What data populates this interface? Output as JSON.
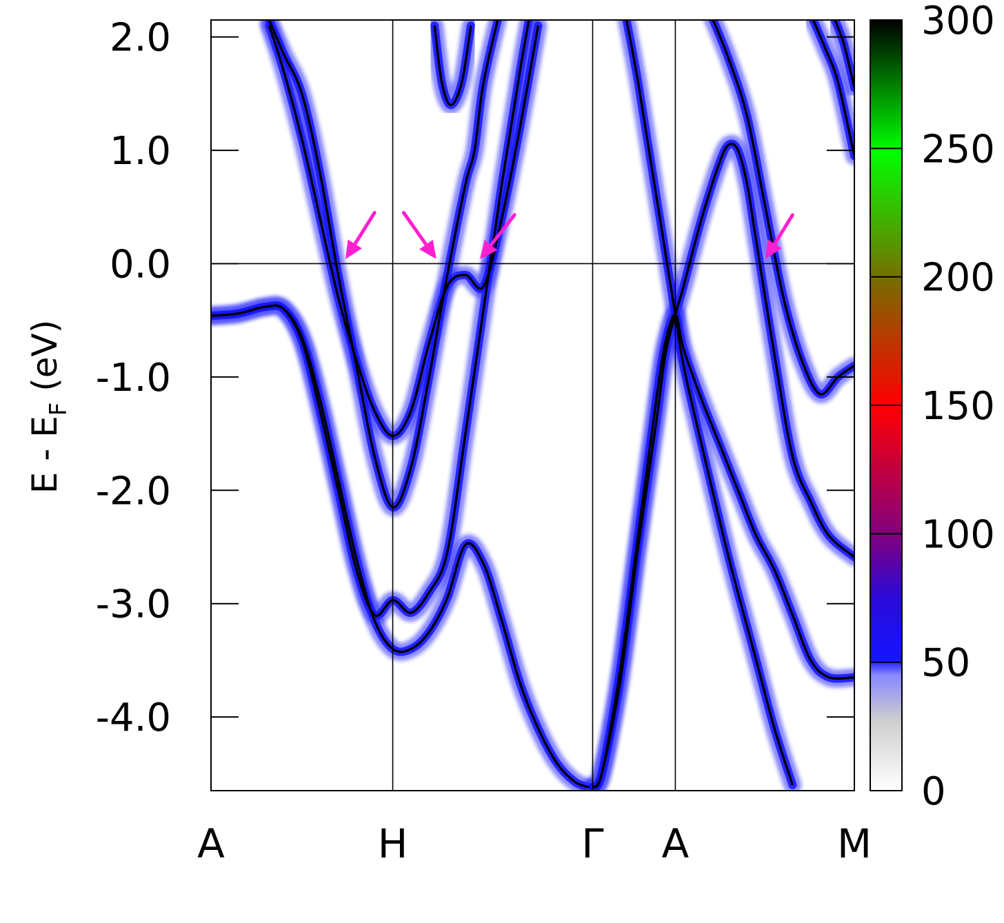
{
  "chart_data": {
    "type": "heatmap",
    "title": "",
    "xlabel": "",
    "ylabel": {
      "main": "E - E",
      "sub": "F",
      "unit": " (eV)"
    },
    "ylim": [
      -4.65,
      2.15
    ],
    "yticks": [
      2.0,
      1.0,
      0.0,
      -1.0,
      -2.0,
      -3.0,
      -4.0
    ],
    "ytick_labels": [
      "2.0",
      "1.0",
      "0.0",
      "-1.0",
      "-2.0",
      "-3.0",
      "-4.0"
    ],
    "kpath": [
      {
        "label": "A",
        "pos": 0.0
      },
      {
        "label": "H",
        "pos": 1.0
      },
      {
        "label": "Γ",
        "pos": 2.1
      },
      {
        "label": "A",
        "pos": 2.555
      },
      {
        "label": "M",
        "pos": 3.54
      }
    ],
    "fermi_level": 0.0,
    "colorbar": {
      "range": [
        0,
        300
      ],
      "ticks": [
        0,
        50,
        100,
        150,
        200,
        250,
        300
      ],
      "tick_labels": [
        "0",
        "50",
        "100",
        "150",
        "200",
        "250",
        "300"
      ],
      "colors": [
        "#ffffff",
        "#1414ff",
        "#800080",
        "#ff0000",
        "#7a6a00",
        "#00ff00",
        "#000000"
      ]
    },
    "series": [
      {
        "points": [
          [
            0.0,
            -0.46
          ],
          [
            0.15,
            -0.44
          ],
          [
            0.3,
            -0.38
          ],
          [
            0.4,
            -0.4
          ],
          [
            0.5,
            -0.65
          ],
          [
            0.6,
            -1.2
          ],
          [
            0.7,
            -1.9
          ],
          [
            0.8,
            -2.6
          ],
          [
            0.9,
            -3.15
          ],
          [
            1.0,
            -3.4
          ],
          [
            1.1,
            -3.4
          ],
          [
            1.2,
            -3.25
          ],
          [
            1.3,
            -2.95
          ],
          [
            1.4,
            -2.48
          ],
          [
            1.5,
            -2.65
          ],
          [
            1.6,
            -3.15
          ],
          [
            1.7,
            -3.7
          ],
          [
            1.8,
            -4.1
          ],
          [
            1.9,
            -4.4
          ],
          [
            2.0,
            -4.57
          ],
          [
            2.08,
            -4.62
          ]
        ]
      },
      {
        "points": [
          [
            0.0,
            -0.46
          ],
          [
            0.15,
            -0.44
          ],
          [
            0.3,
            -0.38
          ],
          [
            0.4,
            -0.4
          ],
          [
            0.5,
            -0.68
          ],
          [
            0.6,
            -1.3
          ],
          [
            0.7,
            -2.0
          ],
          [
            0.8,
            -2.7
          ],
          [
            0.9,
            -3.1
          ],
          [
            1.0,
            -2.97
          ],
          [
            1.1,
            -3.08
          ],
          [
            1.2,
            -2.9
          ],
          [
            1.3,
            -2.55
          ],
          [
            1.4,
            -1.5
          ],
          [
            1.5,
            -0.4
          ],
          [
            1.6,
            0.7
          ],
          [
            1.7,
            1.7
          ],
          [
            1.8,
            2.6
          ]
        ]
      },
      {
        "points": [
          [
            0.32,
            2.1
          ],
          [
            0.4,
            1.7
          ],
          [
            0.5,
            1.1
          ],
          [
            0.6,
            0.4
          ],
          [
            0.7,
            -0.3
          ],
          [
            0.8,
            -0.85
          ],
          [
            0.9,
            -1.3
          ],
          [
            1.0,
            -1.52
          ],
          [
            1.1,
            -1.3
          ],
          [
            1.2,
            -0.7
          ],
          [
            1.3,
            -0.2
          ],
          [
            1.4,
            -0.1
          ],
          [
            1.5,
            -0.2
          ],
          [
            1.6,
            0.4
          ],
          [
            1.7,
            1.2
          ],
          [
            1.8,
            2.1
          ]
        ]
      },
      {
        "points": [
          [
            0.32,
            2.15
          ],
          [
            0.4,
            1.85
          ],
          [
            0.5,
            1.5
          ],
          [
            0.6,
            0.8
          ],
          [
            0.7,
            -0.1
          ],
          [
            0.8,
            -0.9
          ],
          [
            0.9,
            -1.7
          ],
          [
            1.0,
            -2.15
          ],
          [
            1.1,
            -1.8
          ],
          [
            1.2,
            -1.0
          ],
          [
            1.3,
            -0.1
          ],
          [
            1.4,
            0.7
          ],
          [
            1.45,
            1.0
          ],
          [
            1.5,
            1.6
          ],
          [
            1.6,
            2.3
          ]
        ]
      },
      {
        "points": [
          [
            1.23,
            2.1
          ],
          [
            1.27,
            1.6
          ],
          [
            1.32,
            1.4
          ],
          [
            1.38,
            1.6
          ],
          [
            1.43,
            2.1
          ]
        ]
      },
      {
        "points": [
          [
            2.1,
            -4.62
          ],
          [
            2.15,
            -4.5
          ],
          [
            2.25,
            -3.7
          ],
          [
            2.35,
            -2.5
          ],
          [
            2.45,
            -1.4
          ],
          [
            2.5,
            -0.8
          ],
          [
            2.555,
            -0.45
          ],
          [
            2.6,
            -0.2
          ],
          [
            2.7,
            0.4
          ],
          [
            2.8,
            0.9
          ],
          [
            2.85,
            1.05
          ],
          [
            2.9,
            1.0
          ],
          [
            2.95,
            0.7
          ],
          [
            3.0,
            0.2
          ],
          [
            3.1,
            -0.8
          ],
          [
            3.2,
            -1.7
          ],
          [
            3.3,
            -2.1
          ],
          [
            3.4,
            -2.4
          ],
          [
            3.54,
            -2.59
          ]
        ]
      },
      {
        "points": [
          [
            2.1,
            -4.62
          ],
          [
            2.15,
            -4.5
          ],
          [
            2.25,
            -3.6
          ],
          [
            2.35,
            -2.4
          ],
          [
            2.45,
            -1.2
          ],
          [
            2.5,
            -0.7
          ],
          [
            2.555,
            -0.45
          ],
          [
            2.6,
            -0.75
          ],
          [
            2.7,
            -1.2
          ],
          [
            2.8,
            -1.6
          ],
          [
            2.9,
            -2.0
          ],
          [
            3.0,
            -2.4
          ],
          [
            3.1,
            -2.7
          ],
          [
            3.2,
            -3.1
          ],
          [
            3.3,
            -3.5
          ],
          [
            3.4,
            -3.65
          ],
          [
            3.54,
            -3.65
          ]
        ]
      },
      {
        "points": [
          [
            2.28,
            2.2
          ],
          [
            2.35,
            1.6
          ],
          [
            2.45,
            0.6
          ],
          [
            2.555,
            -0.45
          ],
          [
            2.6,
            -0.9
          ],
          [
            2.7,
            -1.6
          ],
          [
            2.85,
            -2.6
          ],
          [
            3.0,
            -3.5
          ],
          [
            3.1,
            -4.1
          ],
          [
            3.2,
            -4.6
          ]
        ]
      },
      {
        "points": [
          [
            2.75,
            2.2
          ],
          [
            2.85,
            1.8
          ],
          [
            2.95,
            1.3
          ],
          [
            3.05,
            0.5
          ],
          [
            3.15,
            -0.3
          ],
          [
            3.25,
            -0.85
          ],
          [
            3.35,
            -1.15
          ],
          [
            3.45,
            -1.0
          ],
          [
            3.54,
            -0.9
          ]
        ]
      },
      {
        "points": [
          [
            3.3,
            2.2
          ],
          [
            3.38,
            1.9
          ],
          [
            3.45,
            1.6
          ],
          [
            3.54,
            0.95
          ]
        ]
      },
      {
        "points": [
          [
            3.42,
            2.2
          ],
          [
            3.48,
            1.95
          ],
          [
            3.54,
            1.55
          ]
        ]
      }
    ],
    "arrows": [
      {
        "from": [
          0.9,
          0.45
        ],
        "to": [
          0.74,
          0.04
        ]
      },
      {
        "from": [
          1.06,
          0.45
        ],
        "to": [
          1.24,
          0.04
        ]
      },
      {
        "from": [
          1.67,
          0.43
        ],
        "to": [
          1.48,
          0.04
        ]
      },
      {
        "from": [
          3.2,
          0.43
        ],
        "to": [
          3.05,
          0.04
        ]
      }
    ],
    "arrow_color": "#ff1fd0",
    "band_line_color": "#000000"
  }
}
